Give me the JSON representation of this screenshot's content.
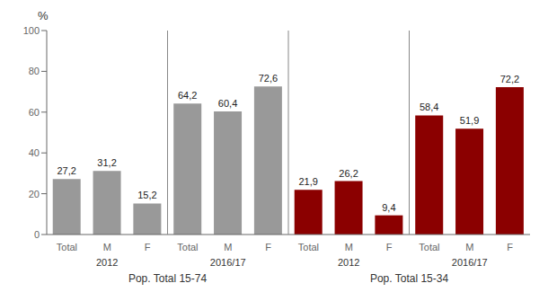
{
  "chart_data": {
    "type": "bar",
    "ylabel": "%",
    "categories": [
      "Total",
      "M",
      "F",
      "Total",
      "M",
      "F",
      "Total",
      "M",
      "F",
      "Total",
      "M",
      "F"
    ],
    "values": [
      27.2,
      31.2,
      15.2,
      64.2,
      60.4,
      72.6,
      21.9,
      26.2,
      9.4,
      58.4,
      51.9,
      72.2
    ],
    "value_labels": [
      "27,2",
      "31,2",
      "15,2",
      "64,2",
      "60,4",
      "72,6",
      "21,9",
      "26,2",
      "9,4",
      "58,4",
      "51,9",
      "72,2"
    ],
    "colors": [
      "#999999",
      "#999999",
      "#999999",
      "#999999",
      "#999999",
      "#999999",
      "#8B0000",
      "#8B0000",
      "#8B0000",
      "#8B0000",
      "#8B0000",
      "#8B0000"
    ],
    "year_labels": [
      "2012",
      "2016/17",
      "2012",
      "2016/17"
    ],
    "group_labels": [
      "Pop. Total 15-74",
      "Pop. Total 15-34"
    ],
    "ylim": [
      0,
      100
    ],
    "yticks": [
      0,
      20,
      40,
      60,
      80,
      100
    ],
    "grid": false,
    "data_labels": true
  }
}
